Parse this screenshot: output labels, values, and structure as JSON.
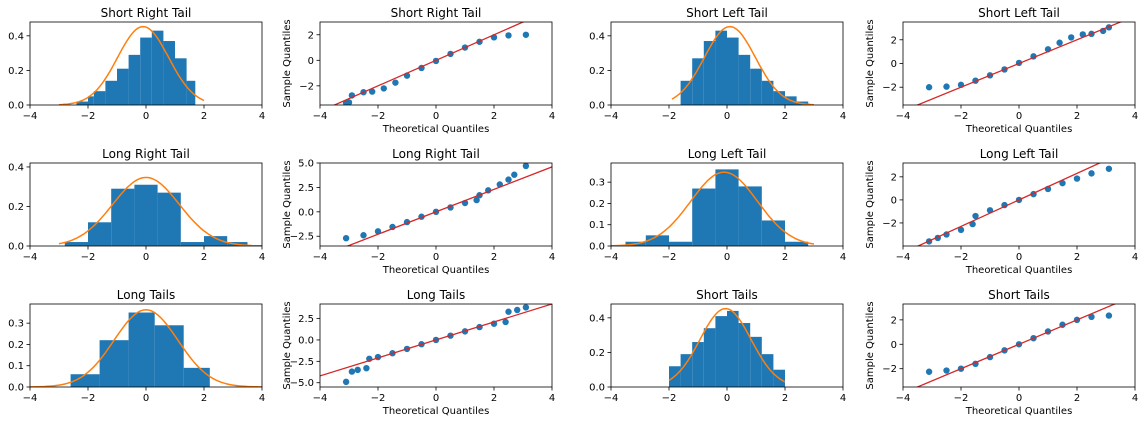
{
  "chart_data": [
    {
      "type": "bar",
      "title": "Short Right Tail",
      "xlim": [
        -4,
        4
      ],
      "ylim": [
        0,
        0.48
      ],
      "xticks": [
        "-4",
        "-2",
        "0",
        "2",
        "4"
      ],
      "yticks": [
        0.0,
        0.2,
        0.4
      ],
      "bins": [
        [
          -2.4,
          0.02
        ],
        [
          -2.0,
          0.05
        ],
        [
          -1.8,
          0.08
        ],
        [
          -1.4,
          0.14
        ],
        [
          -1.0,
          0.21
        ],
        [
          -0.6,
          0.29
        ],
        [
          -0.2,
          0.39
        ],
        [
          0.2,
          0.43
        ],
        [
          0.6,
          0.37
        ],
        [
          1.0,
          0.27
        ],
        [
          1.4,
          0.14
        ],
        [
          1.7,
          0.0
        ]
      ],
      "density": {
        "mu": -0.1,
        "sigma": 0.88,
        "range": [
          -3.0,
          2.0
        ]
      }
    },
    {
      "type": "scatter",
      "title": "Short Right Tail",
      "xlabel": "Theoretical Quantiles",
      "ylabel": "Sample Quantiles",
      "xlim": [
        -4,
        4
      ],
      "ylim": [
        -3.5,
        3.0
      ],
      "xticks": [
        -4,
        -2,
        0,
        2,
        4
      ],
      "yticks": [
        -2,
        0,
        2
      ],
      "points": [
        [
          -3.1,
          -3.35
        ],
        [
          -3.0,
          -3.3
        ],
        [
          -2.9,
          -2.75
        ],
        [
          -2.5,
          -2.5
        ],
        [
          -2.2,
          -2.45
        ],
        [
          -1.8,
          -2.2
        ],
        [
          -1.4,
          -1.75
        ],
        [
          -1.0,
          -1.2
        ],
        [
          -0.5,
          -0.6
        ],
        [
          0.0,
          -0.05
        ],
        [
          0.5,
          0.5
        ],
        [
          1.0,
          1.0
        ],
        [
          1.5,
          1.45
        ],
        [
          2.0,
          1.8
        ],
        [
          2.5,
          1.95
        ],
        [
          3.1,
          2.0
        ]
      ],
      "ref_line": {
        "slope": 1.0,
        "intercept": 0.0
      }
    },
    {
      "type": "bar",
      "title": "Short Left Tail",
      "xlim": [
        -4,
        4
      ],
      "ylim": [
        0,
        0.48
      ],
      "xticks": [
        "-4",
        "-2",
        "0",
        "2",
        "4"
      ],
      "yticks": [
        0.0,
        0.2,
        0.4
      ],
      "bins": [
        [
          -1.6,
          0.14
        ],
        [
          -1.2,
          0.27
        ],
        [
          -0.8,
          0.37
        ],
        [
          -0.4,
          0.43
        ],
        [
          0.0,
          0.39
        ],
        [
          0.4,
          0.29
        ],
        [
          0.8,
          0.21
        ],
        [
          1.2,
          0.14
        ],
        [
          1.6,
          0.08
        ],
        [
          2.0,
          0.05
        ],
        [
          2.4,
          0.02
        ],
        [
          2.8,
          0.0
        ]
      ],
      "density": {
        "mu": 0.1,
        "sigma": 0.88,
        "range": [
          -1.9,
          3.0
        ]
      }
    },
    {
      "type": "scatter",
      "title": "Short Left Tail",
      "xlabel": "Theoretical Quantiles",
      "ylabel": "Sample Quantiles",
      "xlim": [
        -4,
        4
      ],
      "ylim": [
        -3.5,
        3.5
      ],
      "xticks": [
        -4,
        -2,
        0,
        2,
        4
      ],
      "yticks": [
        -2,
        0,
        2
      ],
      "points": [
        [
          -3.1,
          -2.0
        ],
        [
          -2.5,
          -1.95
        ],
        [
          -2.0,
          -1.8
        ],
        [
          -1.5,
          -1.45
        ],
        [
          -1.0,
          -1.0
        ],
        [
          -0.5,
          -0.5
        ],
        [
          0.0,
          0.05
        ],
        [
          0.5,
          0.6
        ],
        [
          1.0,
          1.2
        ],
        [
          1.4,
          1.75
        ],
        [
          1.8,
          2.2
        ],
        [
          2.2,
          2.45
        ],
        [
          2.5,
          2.5
        ],
        [
          2.9,
          2.75
        ],
        [
          3.1,
          3.05
        ]
      ],
      "ref_line": {
        "slope": 1.0,
        "intercept": 0.0
      }
    },
    {
      "type": "bar",
      "title": "Long Right Tail",
      "xlim": [
        -4,
        4
      ],
      "ylim": [
        0,
        0.42
      ],
      "xticks": [
        "-4",
        "-2",
        "0",
        "2",
        "4"
      ],
      "yticks": [
        0.0,
        0.2,
        0.4
      ],
      "bins": [
        [
          -2.8,
          0.02
        ],
        [
          -2.0,
          0.12
        ],
        [
          -1.2,
          0.29
        ],
        [
          -0.4,
          0.31
        ],
        [
          0.4,
          0.27
        ],
        [
          1.2,
          0.02
        ],
        [
          2.0,
          0.05
        ],
        [
          2.8,
          0.02
        ],
        [
          3.5,
          0.0
        ]
      ],
      "density": {
        "mu": 0.0,
        "sigma": 1.15,
        "range": [
          -3.0,
          4.0
        ]
      }
    },
    {
      "type": "scatter",
      "title": "Long Right Tail",
      "xlabel": "Theoretical Quantiles",
      "ylabel": "Sample Quantiles",
      "xlim": [
        -4,
        4
      ],
      "ylim": [
        -3.5,
        5.0
      ],
      "xticks": [
        -4,
        -2,
        0,
        2,
        4
      ],
      "yticks": [
        -2.5,
        0.0,
        2.5,
        5.0
      ],
      "points": [
        [
          -3.1,
          -2.7
        ],
        [
          -2.5,
          -2.4
        ],
        [
          -2.0,
          -2.0
        ],
        [
          -1.5,
          -1.55
        ],
        [
          -1.0,
          -1.05
        ],
        [
          -0.5,
          -0.5
        ],
        [
          0.0,
          0.0
        ],
        [
          0.5,
          0.45
        ],
        [
          1.0,
          0.9
        ],
        [
          1.4,
          1.2
        ],
        [
          1.5,
          1.7
        ],
        [
          1.8,
          2.2
        ],
        [
          2.2,
          2.8
        ],
        [
          2.5,
          3.3
        ],
        [
          2.7,
          3.8
        ],
        [
          3.1,
          4.7
        ]
      ],
      "ref_line": {
        "slope": 1.15,
        "intercept": 0.0
      }
    },
    {
      "type": "bar",
      "title": "Long Left Tail",
      "xlim": [
        -4,
        4
      ],
      "ylim": [
        0,
        0.39
      ],
      "xticks": [
        "-4",
        "-2",
        "0",
        "2",
        "4"
      ],
      "yticks": [
        0.0,
        0.1,
        0.2,
        0.3
      ],
      "bins": [
        [
          -3.5,
          0.02
        ],
        [
          -2.8,
          0.05
        ],
        [
          -2.0,
          0.02
        ],
        [
          -1.2,
          0.27
        ],
        [
          -0.4,
          0.36
        ],
        [
          0.4,
          0.28
        ],
        [
          1.2,
          0.12
        ],
        [
          2.0,
          0.02
        ],
        [
          2.8,
          0.0
        ]
      ],
      "density": {
        "mu": -0.1,
        "sigma": 1.15,
        "range": [
          -4.0,
          3.0
        ]
      }
    },
    {
      "type": "scatter",
      "title": "Long Left Tail",
      "xlabel": "Theoretical Quantiles",
      "ylabel": "Sample Quantiles",
      "xlim": [
        -4,
        4
      ],
      "ylim": [
        -4.0,
        3.2
      ],
      "xticks": [
        -4,
        -2,
        0,
        2,
        4
      ],
      "yticks": [
        -2,
        0,
        2
      ],
      "points": [
        [
          -3.1,
          -3.6
        ],
        [
          -2.8,
          -3.3
        ],
        [
          -2.5,
          -3.0
        ],
        [
          -2.0,
          -2.6
        ],
        [
          -1.6,
          -2.1
        ],
        [
          -1.5,
          -1.4
        ],
        [
          -1.0,
          -0.9
        ],
        [
          -0.5,
          -0.45
        ],
        [
          0.0,
          0.0
        ],
        [
          0.5,
          0.5
        ],
        [
          1.0,
          0.95
        ],
        [
          1.5,
          1.45
        ],
        [
          2.0,
          1.85
        ],
        [
          2.5,
          2.3
        ],
        [
          3.1,
          2.7
        ]
      ],
      "ref_line": {
        "slope": 1.15,
        "intercept": 0.0
      }
    },
    {
      "type": "bar",
      "title": "Long Tails",
      "xlim": [
        -4,
        4
      ],
      "ylim": [
        0,
        0.39
      ],
      "xticks": [
        "-4",
        "-2",
        "0",
        "2",
        "4"
      ],
      "yticks": [
        0.0,
        0.1,
        0.2,
        0.3
      ],
      "bins": [
        [
          -4.0,
          0.0
        ],
        [
          -3.2,
          0.0
        ],
        [
          -2.6,
          0.06
        ],
        [
          -1.6,
          0.22
        ],
        [
          -0.6,
          0.35
        ],
        [
          0.3,
          0.29
        ],
        [
          1.3,
          0.09
        ],
        [
          2.2,
          0.0
        ],
        [
          3.2,
          0.0
        ]
      ],
      "density": {
        "mu": 0.0,
        "sigma": 1.1,
        "range": [
          -4.0,
          4.0
        ]
      }
    },
    {
      "type": "scatter",
      "title": "Long Tails",
      "xlabel": "Theoretical Quantiles",
      "ylabel": "Sample Quantiles",
      "xlim": [
        -4,
        4
      ],
      "ylim": [
        -5.5,
        4.2
      ],
      "xticks": [
        -4,
        -2,
        0,
        2,
        4
      ],
      "yticks": [
        -5.0,
        -2.5,
        0.0,
        2.5
      ],
      "points": [
        [
          -3.1,
          -4.9
        ],
        [
          -2.9,
          -3.7
        ],
        [
          -2.7,
          -3.5
        ],
        [
          -2.4,
          -3.3
        ],
        [
          -2.3,
          -2.2
        ],
        [
          -2.0,
          -2.0
        ],
        [
          -1.5,
          -1.55
        ],
        [
          -1.0,
          -1.05
        ],
        [
          -0.5,
          -0.5
        ],
        [
          0.0,
          0.0
        ],
        [
          0.5,
          0.5
        ],
        [
          1.0,
          1.0
        ],
        [
          1.5,
          1.5
        ],
        [
          2.0,
          1.9
        ],
        [
          2.4,
          2.1
        ],
        [
          2.5,
          3.3
        ],
        [
          2.8,
          3.5
        ],
        [
          3.1,
          3.8
        ]
      ],
      "ref_line": {
        "slope": 1.05,
        "intercept": 0.0
      }
    },
    {
      "type": "bar",
      "title": "Short Tails",
      "xlim": [
        -4,
        4
      ],
      "ylim": [
        0,
        0.48
      ],
      "xticks": [
        "-4",
        "-2",
        "0",
        "2",
        "4"
      ],
      "yticks": [
        0.0,
        0.2,
        0.4
      ],
      "bins": [
        [
          -2.0,
          0.12
        ],
        [
          -1.6,
          0.19
        ],
        [
          -1.2,
          0.26
        ],
        [
          -0.8,
          0.34
        ],
        [
          -0.4,
          0.41
        ],
        [
          0.0,
          0.44
        ],
        [
          0.4,
          0.37
        ],
        [
          0.8,
          0.29
        ],
        [
          1.2,
          0.19
        ],
        [
          1.6,
          0.1
        ],
        [
          2.0,
          0.0
        ]
      ],
      "density": {
        "mu": -0.05,
        "sigma": 0.88,
        "range": [
          -2.0,
          2.0
        ]
      }
    },
    {
      "type": "scatter",
      "title": "Short Tails",
      "xlabel": "Theoretical Quantiles",
      "ylabel": "Sample Quantiles",
      "xlim": [
        -4,
        4
      ],
      "ylim": [
        -3.5,
        3.3
      ],
      "xticks": [
        -4,
        -2,
        0,
        2,
        4
      ],
      "yticks": [
        -2,
        0,
        2
      ],
      "points": [
        [
          -3.1,
          -2.25
        ],
        [
          -2.5,
          -2.15
        ],
        [
          -2.0,
          -2.0
        ],
        [
          -1.5,
          -1.6
        ],
        [
          -1.0,
          -1.05
        ],
        [
          -0.5,
          -0.5
        ],
        [
          0.0,
          0.0
        ],
        [
          0.5,
          0.5
        ],
        [
          1.0,
          1.05
        ],
        [
          1.5,
          1.6
        ],
        [
          2.0,
          2.0
        ],
        [
          2.5,
          2.25
        ],
        [
          3.1,
          2.35
        ]
      ],
      "ref_line": {
        "slope": 1.0,
        "intercept": 0.0
      }
    }
  ]
}
